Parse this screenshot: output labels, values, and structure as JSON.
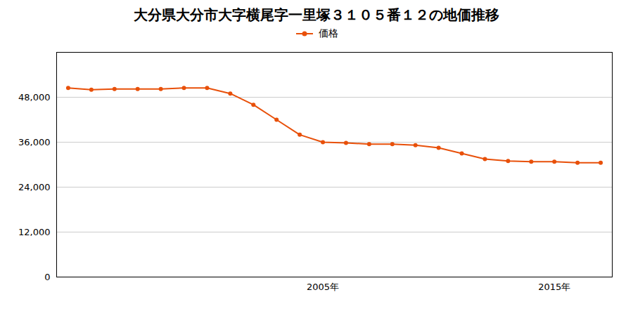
{
  "chart_data": {
    "type": "line",
    "title": "大分県大分市大字横尾字一里塚３１０５番１２の地価推移",
    "x": [
      1994,
      1995,
      1996,
      1997,
      1998,
      1999,
      2000,
      2001,
      2002,
      2003,
      2004,
      2005,
      2006,
      2007,
      2008,
      2009,
      2010,
      2011,
      2012,
      2013,
      2014,
      2015,
      2016,
      2017
    ],
    "series": [
      {
        "name": "価格",
        "color": "#e8500a",
        "marker": "circle",
        "line_style": "solid",
        "values": [
          50500,
          50000,
          50200,
          50200,
          50200,
          50500,
          50500,
          49000,
          46000,
          42000,
          38000,
          36000,
          35800,
          35500,
          35500,
          35200,
          34500,
          33000,
          31500,
          31000,
          30800,
          30800,
          30500,
          30500
        ]
      }
    ],
    "xlim": [
      1993.5,
      2017.5
    ],
    "xticks": [
      {
        "value": 2005,
        "label": "2005年"
      },
      {
        "value": 2015,
        "label": "2015年"
      }
    ],
    "ylim": [
      0,
      60000
    ],
    "yticks": [
      0,
      {
        "value": 12000,
        "label": "12,000"
      },
      {
        "value": 24000,
        "label": "24,000"
      },
      {
        "value": 36000,
        "label": "36,000"
      },
      {
        "value": 48000,
        "label": "48,000"
      }
    ],
    "grid": true,
    "legend": "top"
  }
}
